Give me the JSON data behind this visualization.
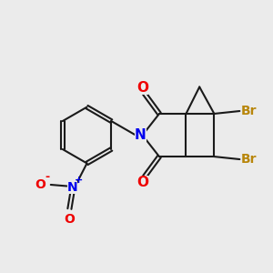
{
  "bg_color": "#ebebeb",
  "bond_color": "#1a1a1a",
  "N_color": "#0000ee",
  "O_color": "#ee0000",
  "Br_color": "#b8860b",
  "line_width": 1.5,
  "figsize": [
    3.0,
    3.0
  ],
  "dpi": 100,
  "xlim": [
    0,
    10
  ],
  "ylim": [
    0,
    10
  ]
}
